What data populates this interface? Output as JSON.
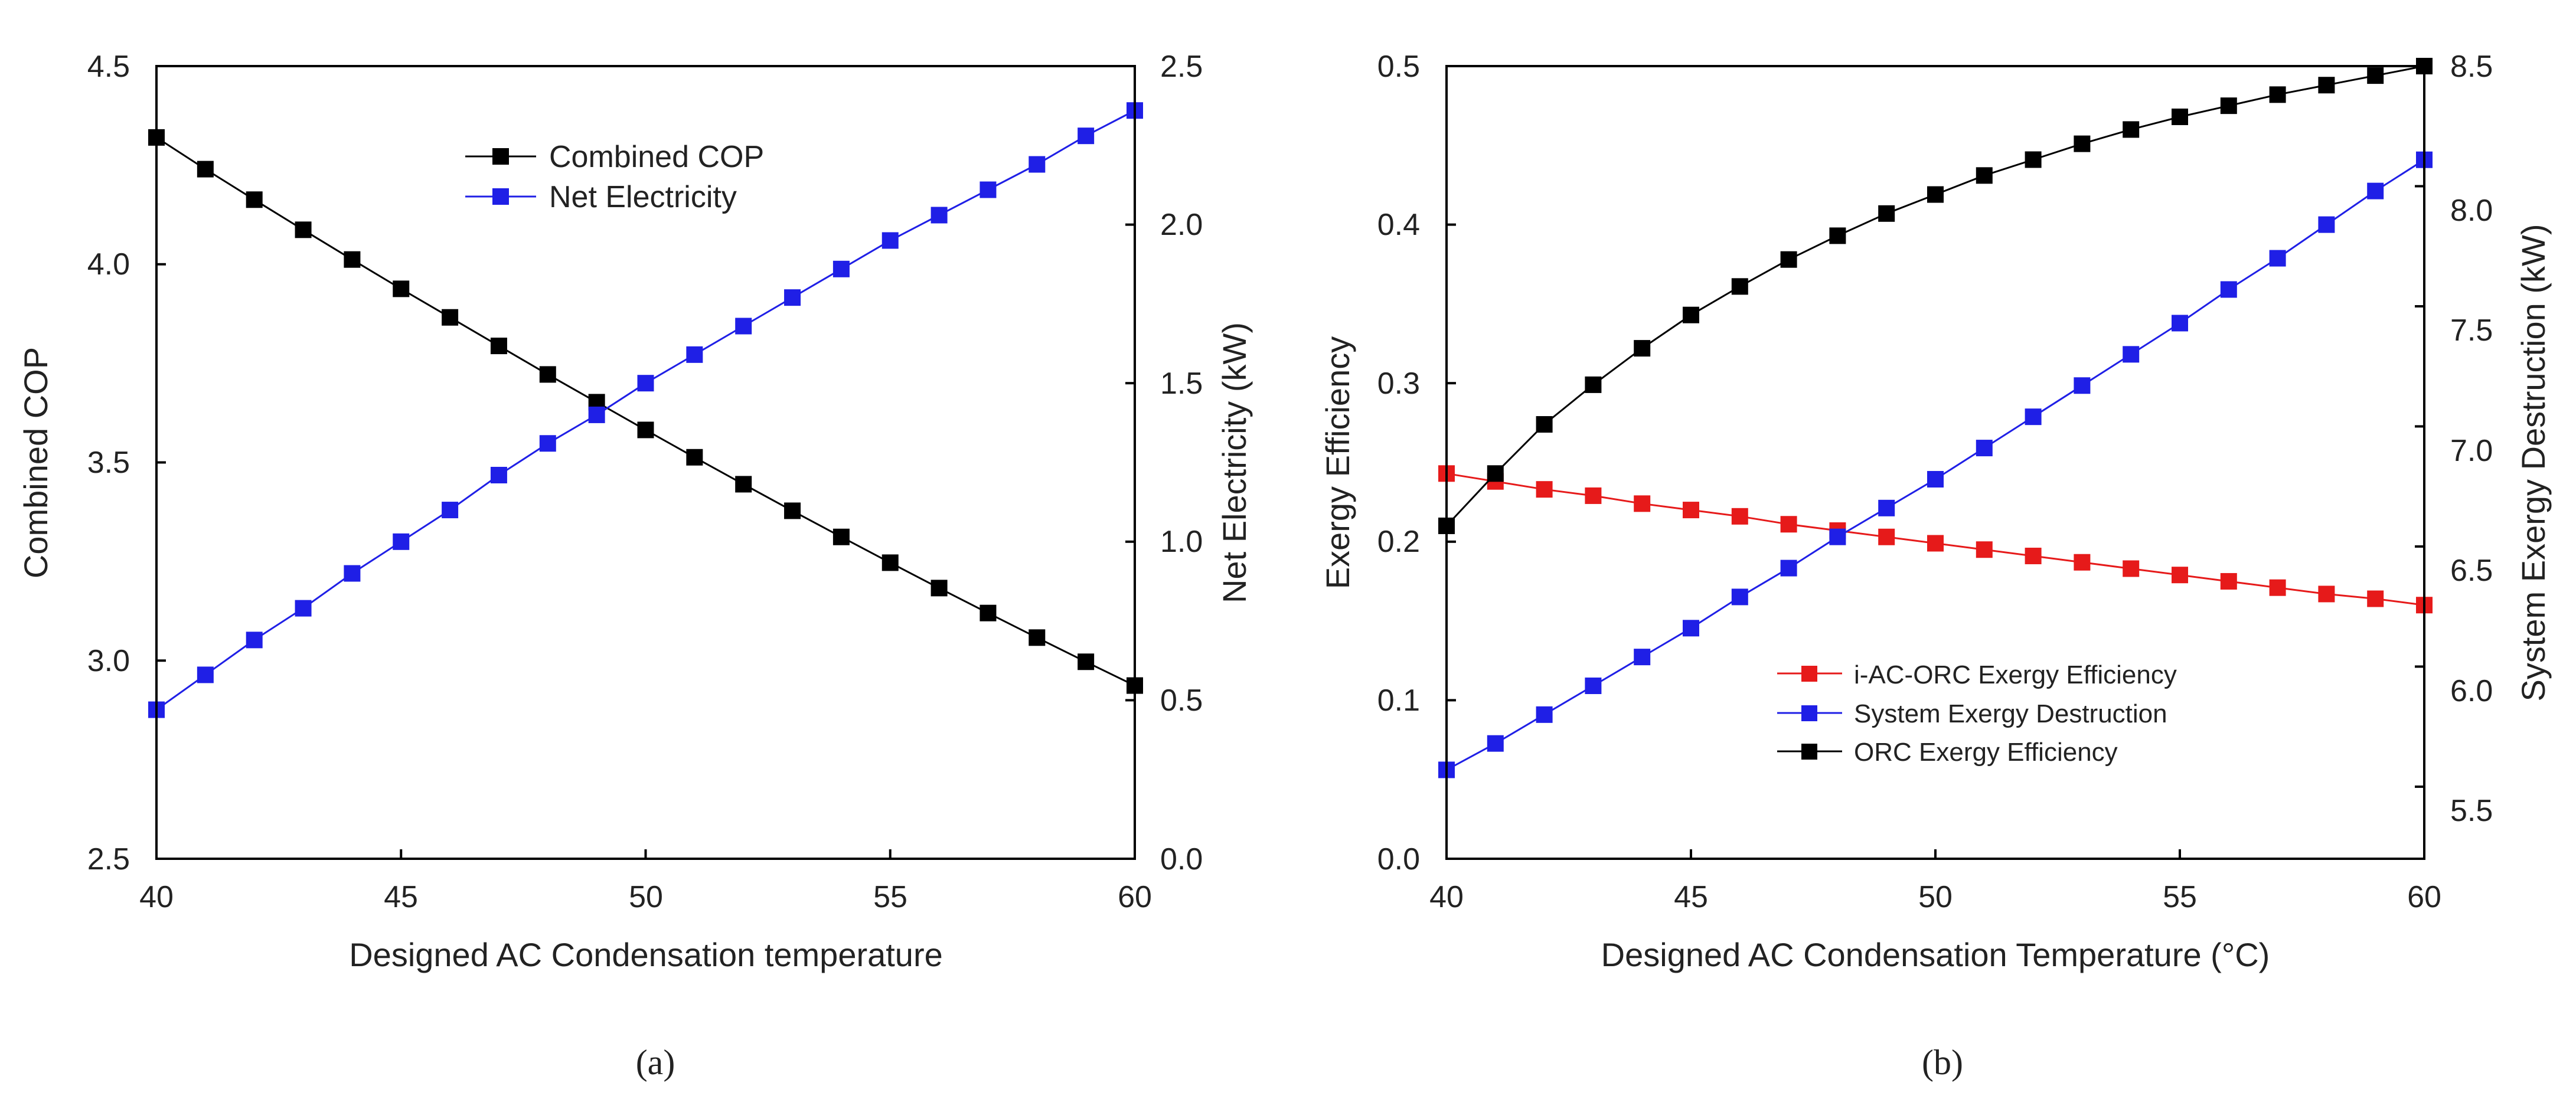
{
  "chart_data": [
    {
      "id": "a",
      "type": "line",
      "panel_label": "(a)",
      "title": "",
      "xlabel": "Designed AC Condensation temperature",
      "ylabel": "Combined COP",
      "ylabel_right": "Net Electricity (kW)",
      "xlim": [
        40,
        60
      ],
      "ylim": [
        2.5,
        4.5
      ],
      "ylim_right": [
        0.0,
        2.5
      ],
      "xticks": [
        "40",
        "45",
        "50",
        "55",
        "60"
      ],
      "yticks": [
        "2.5",
        "3.0",
        "3.5",
        "4.0",
        "4.5"
      ],
      "yticks_right": [
        "0.0",
        "0.5",
        "1.0",
        "1.5",
        "2.0",
        "2.5"
      ],
      "grid": false,
      "legend_position": "top-center",
      "x": [
        40,
        41,
        42,
        43,
        44,
        45,
        46,
        47,
        48,
        49,
        50,
        51,
        52,
        53,
        54,
        55,
        56,
        57,
        58,
        59,
        60
      ],
      "series": [
        {
          "name": "Combined COP",
          "axis": "left",
          "color": "#000000",
          "values": [
            4.32,
            4.24,
            4.163,
            4.087,
            4.012,
            3.938,
            3.866,
            3.794,
            3.722,
            3.652,
            3.582,
            3.513,
            3.445,
            3.378,
            3.312,
            3.247,
            3.183,
            3.12,
            3.058,
            2.997,
            2.937
          ]
        },
        {
          "name": "Net Electricity",
          "axis": "right",
          "color": "#1f1fe6",
          "values": [
            0.47,
            0.58,
            0.69,
            0.79,
            0.9,
            1.0,
            1.1,
            1.21,
            1.31,
            1.4,
            1.5,
            1.59,
            1.68,
            1.77,
            1.86,
            1.95,
            2.03,
            2.11,
            2.19,
            2.28,
            2.36
          ]
        }
      ]
    },
    {
      "id": "b",
      "type": "line",
      "panel_label": "(b)",
      "title": "",
      "xlabel": "Designed AC Condensation Temperature (°C)",
      "ylabel": "Exergy Efficiency",
      "ylabel_right": "System Exergy Destruction (kW)",
      "xlim": [
        40,
        60
      ],
      "ylim": [
        0.0,
        0.5
      ],
      "ylim_right": [
        5.2,
        8.5
      ],
      "xticks": [
        "40",
        "45",
        "50",
        "55",
        "60"
      ],
      "yticks": [
        "0.0",
        "0.1",
        "0.2",
        "0.3",
        "0.4",
        "0.5"
      ],
      "yticks_right": [
        "5.5",
        "6.0",
        "6.5",
        "7.0",
        "7.5",
        "8.0",
        "8.5"
      ],
      "grid": false,
      "legend_position": "bottom-center",
      "x": [
        40,
        41,
        42,
        43,
        44,
        45,
        46,
        47,
        48,
        49,
        50,
        51,
        52,
        53,
        54,
        55,
        56,
        57,
        58,
        59,
        60
      ],
      "series": [
        {
          "name": "i-AC-ORC Exergy Efficiency",
          "axis": "left",
          "color": "#e61a1a",
          "values": [
            0.243,
            0.238,
            0.233,
            0.229,
            0.224,
            0.22,
            0.216,
            0.211,
            0.207,
            0.203,
            0.199,
            0.195,
            0.191,
            0.187,
            0.183,
            0.179,
            0.175,
            0.171,
            0.167,
            0.164,
            0.16
          ]
        },
        {
          "name": "System Exergy Destruction",
          "axis": "right",
          "color": "#1f1fe6",
          "values": [
            5.57,
            5.68,
            5.8,
            5.92,
            6.04,
            6.16,
            6.29,
            6.41,
            6.54,
            6.66,
            6.78,
            6.91,
            7.04,
            7.17,
            7.3,
            7.43,
            7.57,
            7.7,
            7.84,
            7.98,
            8.11
          ]
        },
        {
          "name": "ORC Exergy Efficiency",
          "axis": "left",
          "color": "#000000",
          "values": [
            0.21,
            0.243,
            0.274,
            0.299,
            0.322,
            0.343,
            0.361,
            0.378,
            0.393,
            0.407,
            0.419,
            0.431,
            0.441,
            0.451,
            0.46,
            0.468,
            0.475,
            0.482,
            0.488,
            0.494,
            0.5
          ]
        }
      ]
    }
  ]
}
